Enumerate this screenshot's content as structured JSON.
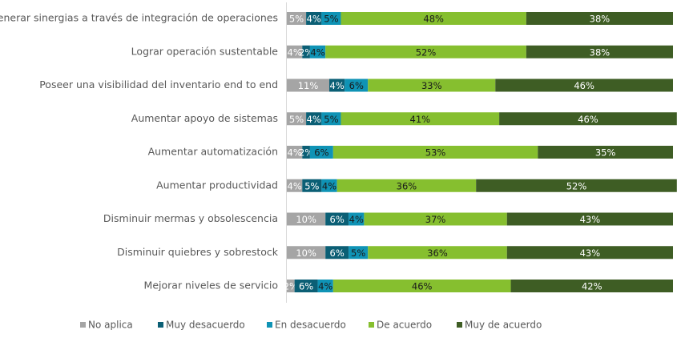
{
  "chart_data": {
    "type": "stacked-bar-horizontal",
    "categories": [
      "Generar sinergias a través de integración de operaciones",
      "Lograr operación sustentable",
      "Poseer una visibilidad del inventario end to end",
      "Aumentar apoyo de sistemas",
      "Aumentar automatización",
      "Aumentar productividad",
      "Disminuir mermas y obsolescencia",
      "Disminuir quiebres y sobrestock",
      "Mejorar niveles de servicio"
    ],
    "series": [
      {
        "name": "No aplica",
        "color": "#a5a5a5",
        "values": [
          5,
          4,
          11,
          5,
          4,
          4,
          10,
          10,
          2
        ],
        "value_labels": [
          "5%",
          "4%",
          "11%",
          "5%",
          "4%",
          "4%",
          "10%",
          "10%",
          "2%"
        ]
      },
      {
        "name": "Muy desacuerdo",
        "color": "#0b5f75",
        "values": [
          4,
          2,
          4,
          4,
          2,
          5,
          6,
          6,
          6
        ],
        "value_labels": [
          "4%",
          "2%",
          "4%",
          "4%",
          "2%",
          "5%",
          "6%",
          "6%",
          "6%"
        ]
      },
      {
        "name": "En desacuerdo",
        "color": "#0f93b5",
        "values": [
          5,
          4,
          6,
          5,
          6,
          4,
          4,
          5,
          4
        ],
        "value_labels": [
          "5%",
          "4%",
          "6%",
          "5%",
          "6%",
          "4%",
          "4%",
          "5%",
          "4%"
        ]
      },
      {
        "name": "De acuerdo",
        "color": "#86bf2f",
        "values": [
          48,
          52,
          33,
          41,
          53,
          36,
          37,
          36,
          46
        ],
        "value_labels": [
          "48%",
          "52%",
          "33%",
          "41%",
          "53%",
          "36%",
          "37%",
          "36%",
          "46%"
        ]
      },
      {
        "name": "Muy de acuerdo",
        "color": "#3e5d24",
        "values": [
          38,
          38,
          46,
          46,
          35,
          52,
          43,
          43,
          42
        ],
        "value_labels": [
          "38%",
          "38%",
          "46%",
          "46%",
          "35%",
          "52%",
          "43%",
          "43%",
          "42%"
        ]
      }
    ]
  }
}
